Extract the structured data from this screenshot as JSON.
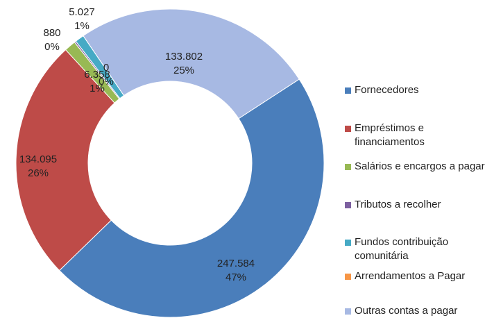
{
  "chart_data": {
    "type": "donut",
    "categories": [
      "Fornecedores",
      "Empréstimos e financiamentos",
      "Salários e encargos a pagar",
      "Tributos a recolher",
      "Fundos contribuição comunitária",
      "Arrendamentos a Pagar",
      "Outras contas a pagar"
    ],
    "values": [
      247584,
      134095,
      6358,
      880,
      5027,
      0,
      133802
    ],
    "value_labels": [
      "247.584",
      "134.095",
      "6.358",
      "880",
      "5.027",
      "0",
      "133.802"
    ],
    "percent_labels": [
      "47%",
      "26%",
      "1%",
      "0%",
      "1%",
      "0%",
      "25%"
    ],
    "colors": [
      "#4a7ebb",
      "#be4b48",
      "#98b954",
      "#7d60a0",
      "#46aac5",
      "#f79646",
      "#a7b9e3"
    ],
    "legend": "right"
  }
}
